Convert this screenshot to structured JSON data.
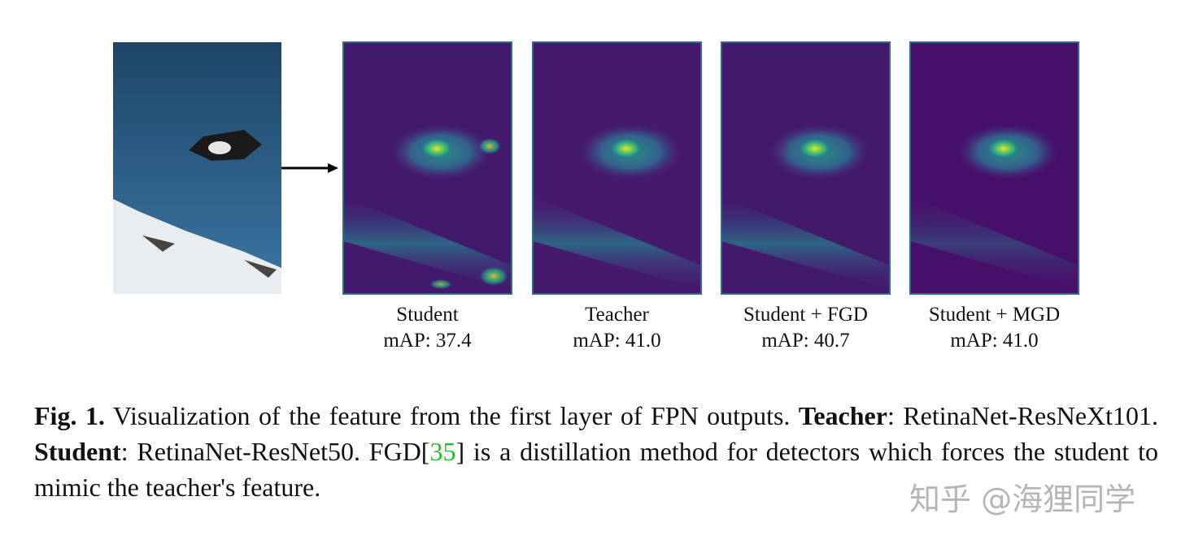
{
  "figure": {
    "panels": [
      {
        "label": "Student",
        "metric": "mAP: 37.4"
      },
      {
        "label": "Teacher",
        "metric": "mAP: 41.0"
      },
      {
        "label": "Student + FGD",
        "metric": "mAP: 40.7"
      },
      {
        "label": "Student + MGD",
        "metric": "mAP: 41.0"
      }
    ]
  },
  "caption": {
    "segments": [
      "Fig. 1.",
      " Visualization of the feature from the first layer of FPN outputs. ",
      "Teacher",
      ": RetinaNet-ResNeXt101. ",
      "Student",
      ": RetinaNet-ResNet50. FGD[",
      "35",
      "] is a distillation method for detectors which forces the student to mimic the teacher's feature."
    ]
  },
  "watermark": "知乎 @海狸同学"
}
